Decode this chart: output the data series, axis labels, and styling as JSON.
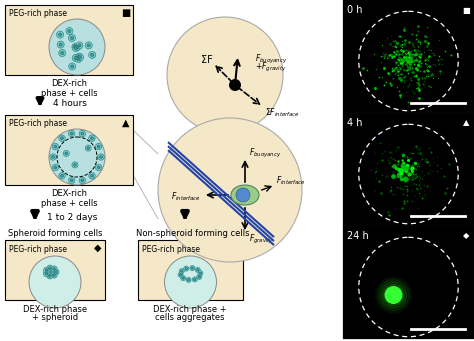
{
  "bg_color": "#ffffff",
  "panel_bg": "#f5e8c8",
  "dex_color": "#b8e0e0",
  "cell_outer": "#7ecece",
  "cell_inner": "#4a9a9a",
  "force_circle_bg": "#f5e8c8",
  "blue_line": "#2244aa",
  "green_cell": "#99cc88",
  "blue_nucleus": "#5588cc",
  "time_labels": [
    "0 h",
    "4 h",
    "24 h"
  ],
  "time_symbols": [
    "■",
    "▲",
    "◆"
  ],
  "figure_width": 4.74,
  "figure_height": 3.41,
  "dpi": 100
}
